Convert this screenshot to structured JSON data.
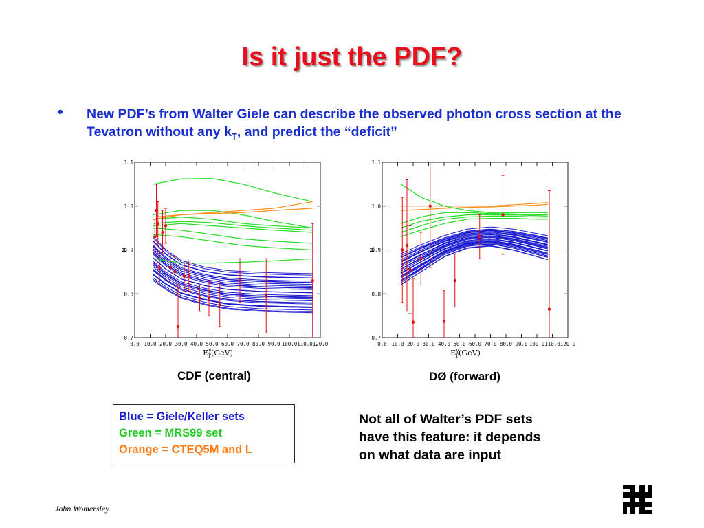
{
  "slide": {
    "title": "Is it just the PDF?",
    "bullet_text_a": "New PDF’s from Walter Giele can describe the observed photon cross section at the Tevatron without any k",
    "bullet_sub": "T",
    "bullet_text_b": ", and predict the “deficit”",
    "caption_cdf": "CDF (central)",
    "caption_d0": "DØ (forward)",
    "legend": {
      "blue": "Blue = Giele/Keller sets",
      "green": "Green = MRS99 set",
      "orange": "Orange = CTEQ5M and L"
    },
    "note_lines": [
      "Not all of Walter’s PDF sets",
      "have this feature: it depends",
      "on what data are input"
    ],
    "author": "John Womersley",
    "logo_icon": "fermilab-logo-icon"
  },
  "colors": {
    "title": "#e8101c",
    "bullet": "#1a2fd0",
    "blue": "#1a1ad0",
    "green": "#22dd22",
    "orange": "#ff8c1a",
    "points": "#e01010"
  },
  "chart_data": [
    {
      "type": "line",
      "panel": "cdf",
      "xlabel": "E",
      "xlabel_sup": "γ",
      "xlabel_sub": "T",
      "xlabel_rest": "(GeV)",
      "ylabel": "R",
      "xlim": [
        0,
        120
      ],
      "ylim": [
        0.7,
        1.1
      ],
      "xticks": [
        "0.0",
        "10.0",
        "20.0",
        "30.0",
        "40.0",
        "50.0",
        "60.0",
        "70.0",
        "80.0",
        "90.0",
        "100.0",
        "110.0",
        "120.0"
      ],
      "yticks": [
        "0.7",
        "0.8",
        "0.9",
        "1.0",
        "1.1"
      ],
      "curves": {
        "blue": {
          "x": [
            12,
            20,
            30,
            45,
            60,
            80,
            100,
            115
          ],
          "low": [
            0.83,
            0.81,
            0.79,
            0.775,
            0.765,
            0.76,
            0.758,
            0.757
          ],
          "high": [
            0.93,
            0.9,
            0.875,
            0.86,
            0.852,
            0.848,
            0.846,
            0.845
          ],
          "count": 30
        },
        "green": {
          "x": [
            12,
            30,
            50,
            70,
            90,
            115
          ],
          "sets": [
            [
              1.05,
              1.062,
              1.063,
              1.05,
              1.03,
              1.01
            ],
            [
              0.97,
              0.975,
              0.97,
              0.96,
              0.955,
              0.95
            ],
            [
              0.96,
              0.965,
              0.962,
              0.955,
              0.95,
              0.945
            ],
            [
              0.955,
              0.96,
              0.955,
              0.95,
              0.945,
              0.94
            ],
            [
              0.98,
              0.99,
              0.99,
              0.98,
              0.965,
              0.95
            ],
            [
              0.95,
              0.945,
              0.935,
              0.925,
              0.92,
              0.915
            ],
            [
              0.935,
              0.93,
              0.92,
              0.91,
              0.905,
              0.9
            ],
            [
              0.88,
              0.87,
              0.87,
              0.872,
              0.875,
              0.88
            ]
          ]
        },
        "orange": {
          "x": [
            12,
            30,
            50,
            70,
            90,
            115
          ],
          "sets": [
            [
              0.97,
              0.98,
              0.985,
              0.99,
              0.995,
              1.01
            ],
            [
              0.975,
              0.98,
              0.983,
              0.985,
              0.99,
              0.995
            ]
          ]
        }
      },
      "points": [
        {
          "x": 13,
          "y": 0.93,
          "err": 0.04
        },
        {
          "x": 14,
          "y": 0.99,
          "err": 0.06
        },
        {
          "x": 15,
          "y": 0.96,
          "err": 0.05
        },
        {
          "x": 16,
          "y": 0.86,
          "err": 0.04
        },
        {
          "x": 18,
          "y": 0.94,
          "err": 0.05
        },
        {
          "x": 20,
          "y": 0.955,
          "err": 0.04
        },
        {
          "x": 23,
          "y": 0.86,
          "err": 0.03
        },
        {
          "x": 26,
          "y": 0.85,
          "err": 0.035
        },
        {
          "x": 28,
          "y": 0.725,
          "err": 0.1
        },
        {
          "x": 32,
          "y": 0.84,
          "err": 0.035
        },
        {
          "x": 35,
          "y": 0.84,
          "err": 0.035
        },
        {
          "x": 42,
          "y": 0.79,
          "err": 0.03
        },
        {
          "x": 48,
          "y": 0.79,
          "err": 0.04
        },
        {
          "x": 55,
          "y": 0.775,
          "err": 0.05
        },
        {
          "x": 68,
          "y": 0.83,
          "err": 0.05
        },
        {
          "x": 85,
          "y": 0.795,
          "err": 0.085
        },
        {
          "x": 115,
          "y": 0.83,
          "err": 0.13
        }
      ]
    },
    {
      "type": "line",
      "panel": "d0",
      "xlabel": "E",
      "xlabel_sup": "γ",
      "xlabel_sub": "T",
      "xlabel_rest": "(GeV)",
      "ylabel": "R",
      "xlim": [
        0,
        120
      ],
      "ylim": [
        0.7,
        1.1
      ],
      "xticks": [
        "0.0",
        "10.0",
        "20.0",
        "30.0",
        "40.0",
        "50.0",
        "60.0",
        "70.0",
        "80.0",
        "90.0",
        "100.0",
        "110.0",
        "120.0"
      ],
      "yticks": [
        "0.7",
        "0.8",
        "0.9",
        "1.0",
        "1.1"
      ],
      "curves": {
        "blue": {
          "x": [
            12,
            25,
            40,
            55,
            70,
            85,
            100,
            107
          ],
          "low": [
            0.82,
            0.85,
            0.885,
            0.905,
            0.91,
            0.9,
            0.885,
            0.878
          ],
          "high": [
            0.89,
            0.91,
            0.93,
            0.945,
            0.95,
            0.945,
            0.935,
            0.93
          ],
          "count": 30
        },
        "green": {
          "x": [
            12,
            25,
            40,
            55,
            70,
            85,
            100,
            107
          ],
          "sets": [
            [
              1.05,
              1.02,
              1.0,
              0.99,
              0.985,
              0.985,
              0.985,
              0.985
            ],
            [
              0.96,
              0.975,
              0.985,
              0.985,
              0.983,
              0.982,
              0.98,
              0.98
            ],
            [
              0.95,
              0.965,
              0.975,
              0.98,
              0.98,
              0.98,
              0.978,
              0.977
            ],
            [
              0.94,
              0.955,
              0.97,
              0.975,
              0.977,
              0.977,
              0.975,
              0.975
            ],
            [
              0.93,
              0.945,
              0.96,
              0.97,
              0.972,
              0.972,
              0.97,
              0.97
            ]
          ]
        },
        "orange": {
          "x": [
            12,
            25,
            40,
            55,
            70,
            85,
            100,
            107
          ],
          "sets": [
            [
              1.0,
              1.0,
              1.0,
              1.0,
              1.0,
              1.003,
              1.006,
              1.008
            ],
            [
              0.99,
              0.992,
              0.995,
              0.997,
              0.998,
              1.0,
              1.002,
              1.004
            ]
          ]
        }
      },
      "points": [
        {
          "x": 13,
          "y": 0.9,
          "err": 0.12
        },
        {
          "x": 16,
          "y": 0.91,
          "err": 0.15
        },
        {
          "x": 18,
          "y": 0.855,
          "err": 0.1
        },
        {
          "x": 20,
          "y": 0.735,
          "err": 0.1
        },
        {
          "x": 25,
          "y": 0.88,
          "err": 0.06
        },
        {
          "x": 31,
          "y": 1.0,
          "err": 0.14
        },
        {
          "x": 40,
          "y": 0.737,
          "err": 0.07
        },
        {
          "x": 47,
          "y": 0.83,
          "err": 0.06
        },
        {
          "x": 63,
          "y": 0.93,
          "err": 0.05
        },
        {
          "x": 78,
          "y": 0.98,
          "err": 0.09
        },
        {
          "x": 108,
          "y": 0.765,
          "err": 0.27
        }
      ]
    }
  ]
}
